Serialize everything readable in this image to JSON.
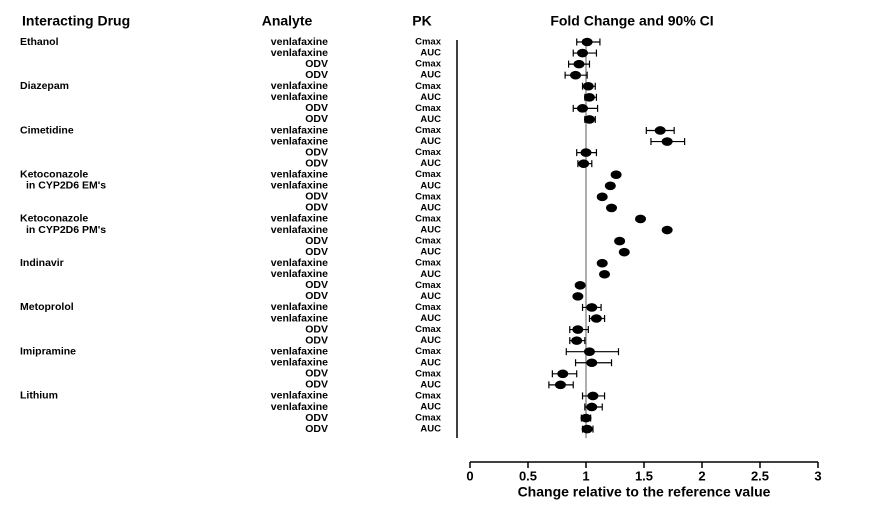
{
  "chart_data": {
    "type": "forest",
    "column_headers": [
      "Interacting Drug",
      "Analyte",
      "PK",
      "Fold Change and 90% CI"
    ],
    "x_label": "Change relative to the reference value",
    "xlim": [
      0,
      3
    ],
    "xticks": [
      0,
      0.5,
      1,
      1.5,
      2,
      2.5,
      3
    ],
    "reference": 1,
    "color": "#000000",
    "drugs": [
      "Ethanol",
      null,
      null,
      null,
      "Diazepam",
      null,
      null,
      null,
      "Cimetidine",
      null,
      null,
      null,
      "Ketoconazole",
      "in CYP2D6 EM's",
      null,
      null,
      "Ketoconazole",
      "in CYP2D6 PM's",
      null,
      null,
      "Indinavir",
      null,
      null,
      null,
      "Metoprolol",
      null,
      null,
      null,
      "Imipramine",
      null,
      null,
      null,
      "Lithium",
      null,
      null,
      null
    ],
    "analytes": [
      "venlafaxine",
      "venlafaxine",
      "ODV",
      "ODV",
      "venlafaxine",
      "venlafaxine",
      "ODV",
      "ODV",
      "venlafaxine",
      "venlafaxine",
      "ODV",
      "ODV",
      "venlafaxine",
      "venlafaxine",
      "ODV",
      "ODV",
      "venlafaxine",
      "venlafaxine",
      "ODV",
      "ODV",
      "venlafaxine",
      "venlafaxine",
      "ODV",
      "ODV",
      "venlafaxine",
      "venlafaxine",
      "ODV",
      "ODV",
      "venlafaxine",
      "venlafaxine",
      "ODV",
      "ODV",
      "venlafaxine",
      "venlafaxine",
      "ODV",
      "ODV"
    ],
    "pk": [
      "Cmax",
      "AUC",
      "Cmax",
      "AUC",
      "Cmax",
      "AUC",
      "Cmax",
      "AUC",
      "Cmax",
      "AUC",
      "Cmax",
      "AUC",
      "Cmax",
      "AUC",
      "Cmax",
      "AUC",
      "Cmax",
      "AUC",
      "Cmax",
      "AUC",
      "Cmax",
      "AUC",
      "Cmax",
      "AUC",
      "Cmax",
      "AUC",
      "Cmax",
      "AUC",
      "Cmax",
      "AUC",
      "Cmax",
      "AUC",
      "Cmax",
      "AUC",
      "Cmax",
      "AUC"
    ],
    "values": [
      1.01,
      0.97,
      0.94,
      0.91,
      1.02,
      1.03,
      0.97,
      1.03,
      1.64,
      1.7,
      1.0,
      0.98,
      1.26,
      1.21,
      1.14,
      1.22,
      1.47,
      1.7,
      1.29,
      1.33,
      1.14,
      1.16,
      0.95,
      0.93,
      1.05,
      1.09,
      0.93,
      0.92,
      1.03,
      1.05,
      0.8,
      0.78,
      1.06,
      1.05,
      1.0,
      1.01
    ],
    "lower": [
      0.92,
      0.89,
      0.85,
      0.82,
      0.97,
      0.99,
      0.89,
      0.99,
      1.52,
      1.56,
      0.92,
      0.93,
      null,
      null,
      null,
      null,
      null,
      null,
      null,
      null,
      null,
      null,
      null,
      null,
      0.97,
      1.03,
      0.86,
      0.86,
      0.83,
      0.91,
      0.71,
      0.68,
      0.97,
      0.99,
      0.96,
      0.97
    ],
    "upper": [
      1.12,
      1.09,
      1.03,
      1.01,
      1.08,
      1.09,
      1.1,
      1.08,
      1.76,
      1.85,
      1.09,
      1.05,
      null,
      null,
      null,
      null,
      null,
      null,
      null,
      null,
      null,
      null,
      null,
      null,
      1.13,
      1.16,
      1.02,
      0.99,
      1.28,
      1.22,
      0.92,
      0.89,
      1.16,
      1.14,
      1.04,
      1.06
    ]
  }
}
